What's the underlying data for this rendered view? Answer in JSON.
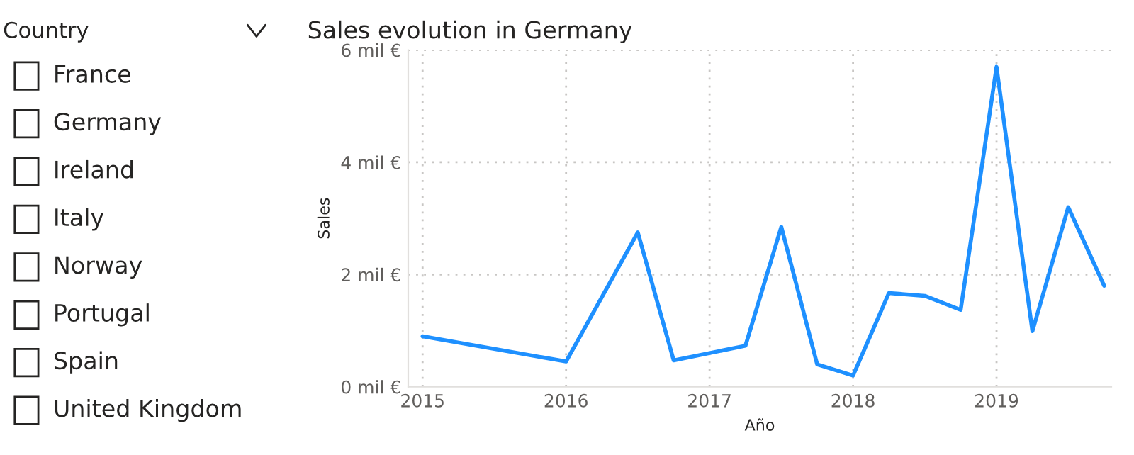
{
  "chart_data": [
    {
      "type": "other",
      "title": "Country",
      "annotations": [
        "France",
        "Germany",
        "Ireland",
        "Italy",
        "Norway",
        "Portugal",
        "Spain",
        "United Kingdom"
      ]
    },
    {
      "type": "line",
      "title": "Sales evolution in Germany",
      "xlabel": "Año",
      "ylabel": "Sales",
      "x": [
        2015,
        2016,
        2016.5,
        2016.75,
        2017.25,
        2017.5,
        2017.75,
        2018,
        2018.25,
        2018.5,
        2018.75,
        2019,
        2019.25,
        2019.5,
        2019.75
      ],
      "series": [
        {
          "color": "#1e90ff",
          "values": [
            0.9,
            0.45,
            2.75,
            0.47,
            0.73,
            2.85,
            0.4,
            0.2,
            1.67,
            1.62,
            1.37,
            5.7,
            0.99,
            3.2,
            1.8
          ]
        }
      ],
      "xlim": [
        2014.9,
        2019.8
      ],
      "xticks": [
        2015,
        2016,
        2017,
        2018,
        2019
      ],
      "ylim": [
        0,
        6
      ],
      "yticks": [
        {
          "value": 0,
          "label": "0 mil €"
        },
        {
          "value": 2,
          "label": "2 mil €"
        },
        {
          "value": 4,
          "label": "4 mil €"
        },
        {
          "value": 6,
          "label": "6 mil €"
        }
      ],
      "grid": true,
      "line_style": "solid",
      "marker": "none",
      "legend": false
    }
  ]
}
